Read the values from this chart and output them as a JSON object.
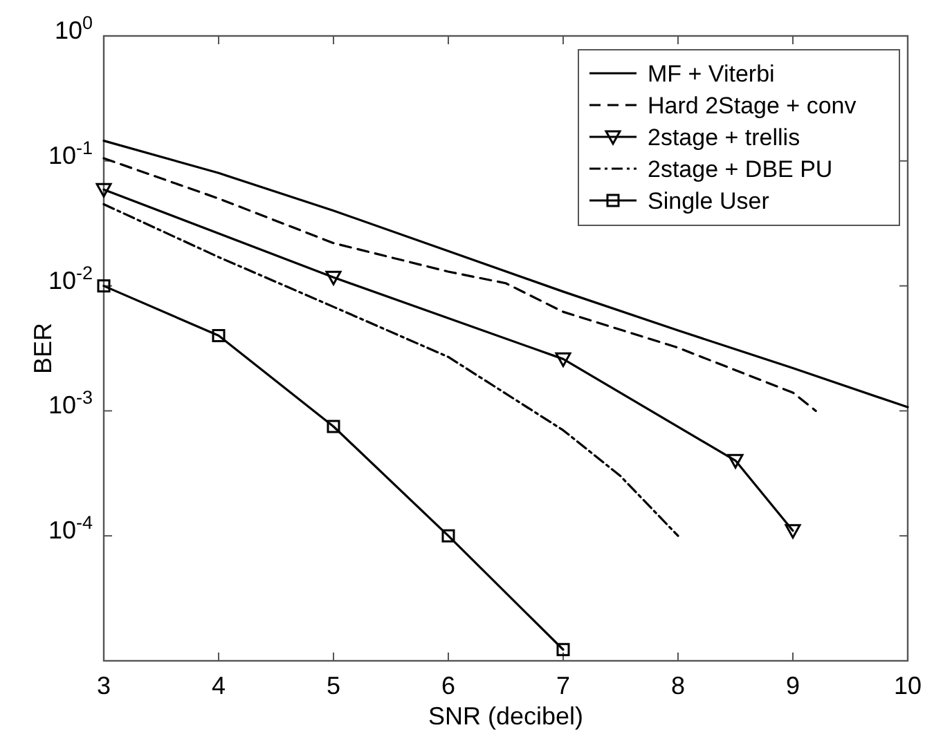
{
  "chart_data": {
    "type": "line",
    "xlabel": "SNR (decibel)",
    "ylabel": "BER",
    "log": "y",
    "grid": false,
    "legend": "top right",
    "xlim": [
      3,
      10
    ],
    "xticks": [
      3,
      4,
      5,
      6,
      7,
      8,
      9,
      10
    ],
    "ylim": [
      1e-05,
      1
    ],
    "yticks": [
      {
        "value": 1,
        "label": "10$^{0}$"
      },
      {
        "value": 0.1,
        "label": "10$^{-1}$"
      },
      {
        "value": 0.01,
        "label": "10$^{-2}$"
      },
      {
        "value": 0.001,
        "label": "10$^{-3}$"
      },
      {
        "value": 0.0001,
        "label": "10$^{-4}$"
      }
    ],
    "series": [
      {
        "name": "MF + Viterbi",
        "color": "#000000",
        "line_style": "solid",
        "marker": "none",
        "x": [
          3,
          4,
          5,
          6,
          7,
          8,
          9,
          10
        ],
        "values": [
          0.145,
          0.08,
          0.04,
          0.019,
          0.009,
          0.0044,
          0.0022,
          0.00107
        ]
      },
      {
        "name": "Hard 2Stage + conv",
        "color": "#000000",
        "line_style": "dashed",
        "marker": "none",
        "x": [
          3,
          4,
          5,
          6,
          6.5,
          7,
          8,
          9,
          9.2
        ],
        "values": [
          0.105,
          0.05,
          0.022,
          0.013,
          0.0105,
          0.0062,
          0.0032,
          0.0014,
          0.001
        ]
      },
      {
        "name": "2stage + trellis",
        "color": "#000000",
        "line_style": "solid",
        "marker": "triangle",
        "x": [
          3,
          5,
          7,
          8.5,
          9
        ],
        "values": [
          0.059,
          0.0117,
          0.0026,
          0.0004,
          0.00011
        ]
      },
      {
        "name": "2stage + DBE PU",
        "color": "#000000",
        "line_style": "dashdot",
        "marker": "none",
        "x": [
          3,
          4,
          5,
          6,
          7,
          7.5,
          8
        ],
        "values": [
          0.045,
          0.017,
          0.0068,
          0.0027,
          0.0007,
          0.0003,
          0.0001
        ]
      },
      {
        "name": "Single User",
        "color": "#000000",
        "line_style": "solid",
        "marker": "square",
        "x": [
          3,
          4,
          5,
          6,
          7
        ],
        "values": [
          0.01,
          0.004,
          0.00075,
          0.0001,
          1.23e-05
        ]
      }
    ]
  }
}
